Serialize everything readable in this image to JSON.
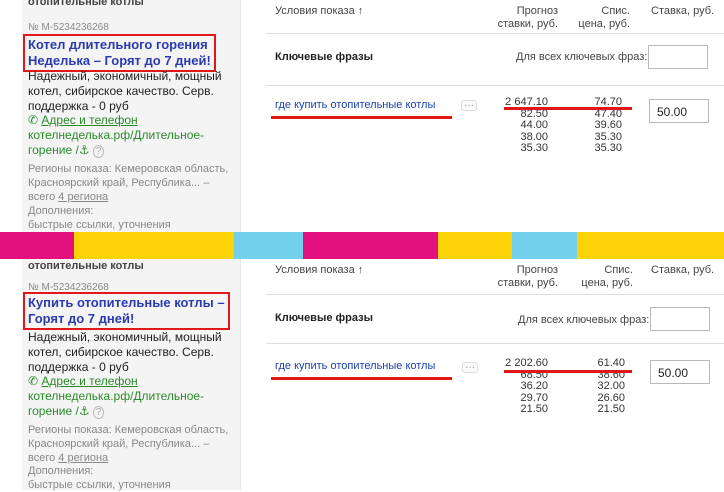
{
  "colors": {
    "red": "#e01818",
    "magenta": "#e2117f",
    "yellow": "#fcd307",
    "cyan": "#72d0ec",
    "link_blue": "#2a3bb0",
    "green": "#2a8a2a"
  },
  "stripe": [
    "magenta",
    "yellow",
    "cyan",
    "magenta",
    "yellow",
    "cyan",
    "yellow"
  ],
  "top": {
    "category": "отопительные котлы",
    "ad_number": "№ М-5234236268",
    "title_line1": "Котел длительного горения",
    "title_line2": "Неделька – Горят до 7 дней!",
    "body_lines": [
      "Надежный, экономичный, мощный",
      "котел, сибирское качество. Серв.",
      "поддержка - 0 руб"
    ],
    "address_label": "Адрес и телефон",
    "url_line1": "котелнеделька.рф/Длительное-",
    "url_line2": "горение /",
    "regions_line1": "Регионы показа: Кемеровская область,",
    "regions_line2": "Красноярский край, Республика... –",
    "regions_total": "всего",
    "regions_link": "4 региона",
    "extras_label": "Дополнения:",
    "extras_value": "быстрые ссылки, уточнения",
    "col_conditions": "Условия показа",
    "col_forecast1": "Прогноз",
    "col_forecast2": "ставки, руб.",
    "col_price1": "Спис.",
    "col_price2": "цена, руб.",
    "col_bid": "Ставка, руб.",
    "section_label": "Ключевые фразы",
    "all_phrases_label": "Для всех ключевых фраз:",
    "keyword": "где купить отопительные котлы",
    "dots": "···",
    "forecast": [
      "2 647.10",
      "82.50",
      "44.00",
      "38.00",
      "35.30"
    ],
    "price": [
      "74.70",
      "47.40",
      "39.60",
      "35.30",
      "35.30"
    ],
    "bid": "50.00"
  },
  "bottom": {
    "category": "отопительные котлы",
    "ad_number": "№ М-5234236268",
    "title_line1": "Купить отопительные котлы –",
    "title_line2": "Горят до 7 дней!",
    "body_lines": [
      "Надежный, экономичный, мощный",
      "котел, сибирское качество. Серв.",
      "поддержка - 0 руб"
    ],
    "address_label": "Адрес и телефон",
    "url_line1": "котелнеделька.рф/Длительное-",
    "url_line2": "горение /",
    "regions_line1": "Регионы показа: Кемеровская область,",
    "regions_line2": "Красноярский край, Республика... –",
    "regions_total": "всего",
    "regions_link": "4 региона",
    "extras_label": "Дополнения:",
    "extras_value": "быстрые ссылки, уточнения",
    "col_conditions": "Условия показа",
    "col_forecast1": "Прогноз",
    "col_forecast2": "ставки, руб.",
    "col_price1": "Спис.",
    "col_price2": "цена, руб.",
    "col_bid": "Ставка, руб.",
    "section_label": "Ключевые фразы",
    "all_phrases_label": "Для всех ключевых фраз:",
    "keyword": "где купить отопительные котлы",
    "dots": "···",
    "forecast": [
      "2 202.60",
      "68.50",
      "36.20",
      "29.70",
      "21.50"
    ],
    "price": [
      "61.40",
      "38.60",
      "32.00",
      "26.60",
      "21.50"
    ],
    "bid": "50.00"
  }
}
